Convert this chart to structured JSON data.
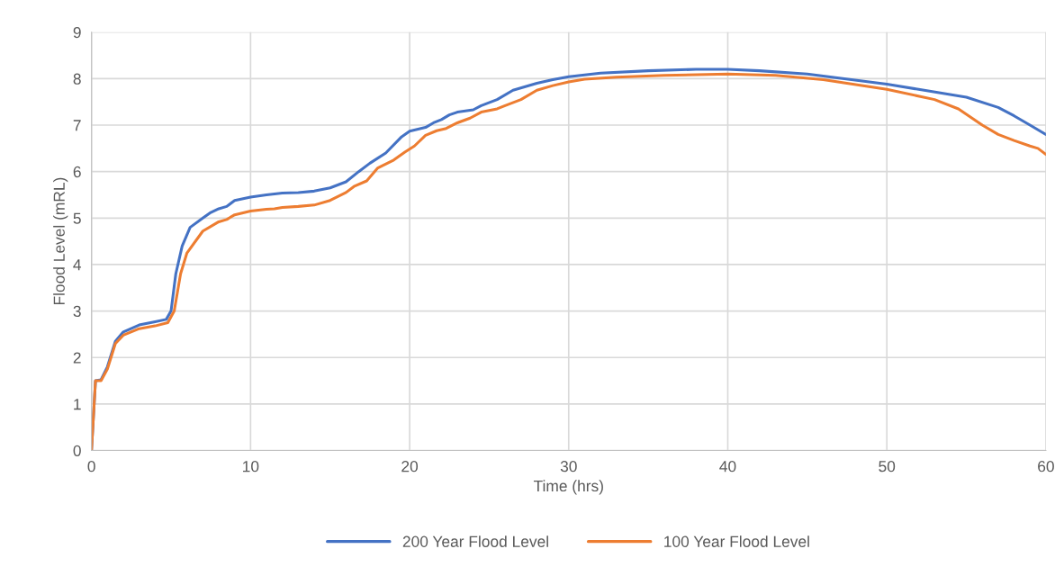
{
  "chart_data": {
    "type": "line",
    "xlabel": "Time (hrs)",
    "ylabel": "Flood Level (mRL)",
    "xlim": [
      0,
      60
    ],
    "xticks": [
      0,
      10,
      20,
      30,
      40,
      50,
      60
    ],
    "ylim": [
      0,
      9
    ],
    "yticks": [
      0,
      1,
      2,
      3,
      4,
      5,
      6,
      7,
      8,
      9
    ],
    "grid": true,
    "legend": "bottom",
    "marker": "none",
    "line_style": "solid",
    "series": [
      {
        "name": "200 Year Flood Level",
        "color": "#4472c4",
        "x": [
          0,
          0.25,
          0.6,
          1,
          1.5,
          2,
          3,
          4,
          4.7,
          5,
          5.3,
          5.7,
          6.2,
          7,
          7.5,
          8,
          8.5,
          9,
          10,
          11,
          12,
          13,
          14,
          15,
          16,
          16.8,
          17.5,
          18.5,
          19.5,
          20,
          21,
          21.5,
          22,
          22.5,
          23,
          24,
          24.5,
          25.5,
          26.5,
          28,
          29,
          30,
          32,
          35,
          38,
          40,
          42,
          45,
          48,
          50,
          52,
          55,
          57,
          58,
          59,
          60
        ],
        "values": [
          0,
          1.5,
          1.52,
          1.8,
          2.35,
          2.55,
          2.7,
          2.77,
          2.82,
          3.0,
          3.8,
          4.4,
          4.8,
          5.0,
          5.12,
          5.2,
          5.25,
          5.38,
          5.45,
          5.5,
          5.54,
          5.55,
          5.58,
          5.65,
          5.78,
          6.0,
          6.18,
          6.4,
          6.75,
          6.87,
          6.95,
          7.05,
          7.12,
          7.22,
          7.28,
          7.33,
          7.42,
          7.55,
          7.75,
          7.9,
          7.98,
          8.04,
          8.12,
          8.17,
          8.2,
          8.2,
          8.17,
          8.1,
          7.97,
          7.88,
          7.77,
          7.6,
          7.38,
          7.2,
          7.0,
          6.8
        ]
      },
      {
        "name": "100 Year Flood Level",
        "color": "#ed7d31",
        "x": [
          0,
          0.25,
          0.6,
          1,
          1.5,
          2,
          3,
          4,
          4.8,
          5.2,
          5.6,
          6,
          7,
          8,
          8.5,
          9,
          10,
          11,
          11.5,
          12,
          13,
          14,
          15,
          16,
          16.5,
          17.3,
          18,
          19,
          19.7,
          20.3,
          21,
          21.7,
          22.3,
          23,
          23.8,
          24.5,
          25.5,
          26,
          27,
          28,
          29,
          30,
          31,
          33,
          36,
          40,
          43,
          46,
          50,
          53,
          54.5,
          56,
          57,
          58,
          59,
          59.5,
          60
        ],
        "values": [
          0,
          1.5,
          1.5,
          1.75,
          2.3,
          2.48,
          2.62,
          2.68,
          2.75,
          3.0,
          3.8,
          4.25,
          4.72,
          4.92,
          4.97,
          5.07,
          5.15,
          5.19,
          5.2,
          5.23,
          5.25,
          5.28,
          5.38,
          5.55,
          5.68,
          5.8,
          6.08,
          6.25,
          6.42,
          6.55,
          6.78,
          6.88,
          6.93,
          7.05,
          7.15,
          7.28,
          7.35,
          7.42,
          7.55,
          7.75,
          7.85,
          7.93,
          7.99,
          8.03,
          8.07,
          8.1,
          8.07,
          7.98,
          7.77,
          7.55,
          7.35,
          7.0,
          6.8,
          6.67,
          6.55,
          6.5,
          6.37
        ]
      }
    ]
  }
}
